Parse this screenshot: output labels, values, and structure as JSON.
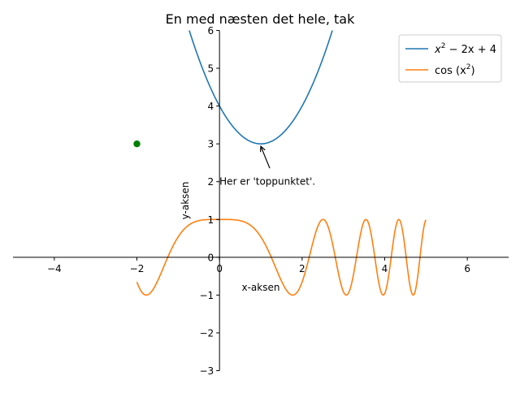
{
  "chart_data": {
    "type": "line",
    "title": "En med næsten det hele, tak",
    "xlabel": "x-aksen",
    "ylabel": "y-aksen",
    "xlim": [
      -5,
      7
    ],
    "ylim": [
      -3,
      6
    ],
    "x_ticks": [
      -4,
      -2,
      0,
      2,
      4,
      6
    ],
    "y_ticks": [
      -3,
      -2,
      -1,
      0,
      1,
      2,
      3,
      4,
      5,
      6
    ],
    "spines": "centered at origin",
    "grid": false,
    "legend_position": "top-right",
    "series": [
      {
        "name": "x^2 - 2x + 4",
        "legend_base": "x",
        "legend_sup": "2",
        "legend_rest": " − 2x + 4",
        "function": "x^2 - 2x + 4",
        "x_range": [
          -2,
          5
        ],
        "color": "#1f77b4"
      },
      {
        "name": "cos(x^2)",
        "legend_base": "cos (x",
        "legend_sup": "2",
        "legend_rest": ")",
        "function": "cos(x^2)",
        "x_range": [
          -2,
          5
        ],
        "color": "#ff7f0e"
      }
    ],
    "points": [
      {
        "x": -2,
        "y": 3,
        "color": "#008000"
      }
    ],
    "annotation": {
      "text": "Her er 'toppunktet'.",
      "xy": [
        1,
        3
      ],
      "xytext": [
        0,
        2
      ]
    }
  }
}
